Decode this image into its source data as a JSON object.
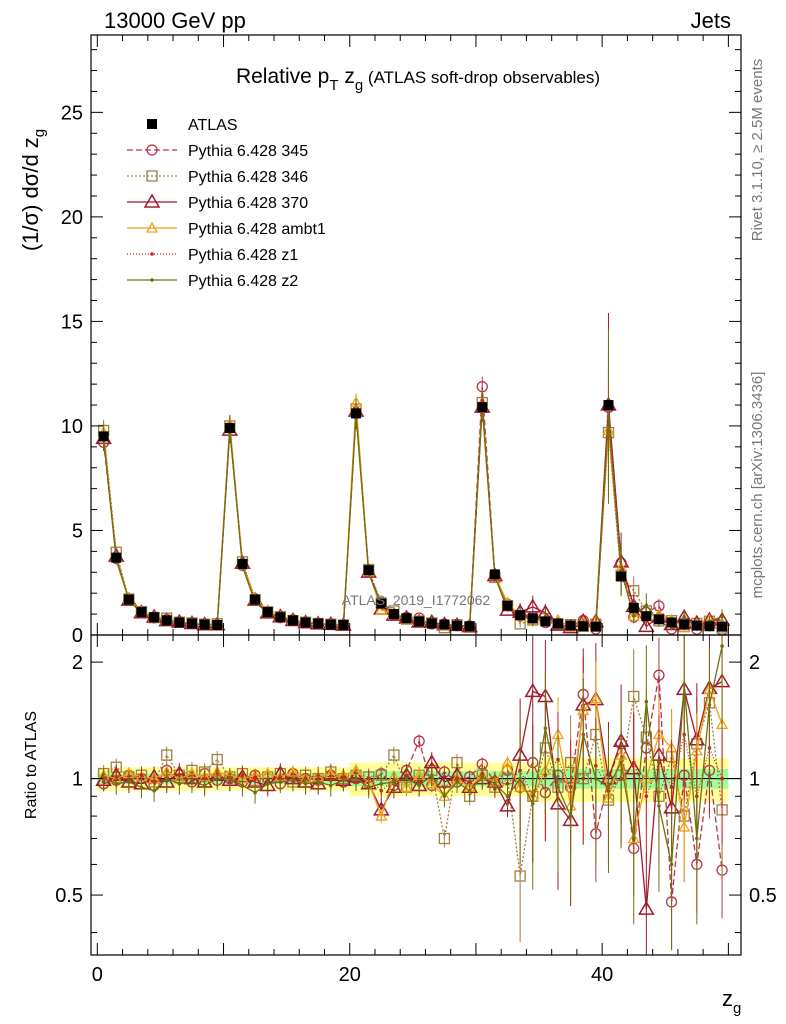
{
  "header": {
    "left": "13000 GeV pp",
    "right": "Jets"
  },
  "side_texts": {
    "rivet": "Rivet 3.1.10, ≥ 2.5M events",
    "mcplots": "mcplots.cern.ch [arXiv:1306.3436]"
  },
  "chart_data": {
    "type": "line",
    "title": "Relative pT zg (ATLAS soft-drop observables)",
    "title_parts": {
      "main": "Relative p",
      "sub_T": "T",
      "mid": " z",
      "sub_g": "g",
      "tail": " (ATLAS soft-drop observables)"
    },
    "ylabel": "(1/σ) dσ/d z_g",
    "ylabel_parts": {
      "main": "(1/σ) dσ/d z",
      "sub": "g"
    },
    "xlabel": "z_g",
    "xlabel_parts": {
      "main": "z",
      "sub": "g"
    },
    "ratio_ylabel": "Ratio to ATLAS",
    "watermark": "ATLAS_2019_I1772062",
    "xlim": [
      -0.5,
      51
    ],
    "ylim": [
      0,
      28.7
    ],
    "ratio_ylim": [
      0.35,
      2.35
    ],
    "x_ticks": [
      0,
      20,
      40
    ],
    "y_ticks": [
      0,
      5,
      10,
      15,
      20,
      25
    ],
    "ratio_ticks": [
      0.5,
      1,
      2
    ],
    "legend_position": "top-left",
    "x": [
      0.5,
      1.5,
      2.5,
      3.5,
      4.5,
      5.5,
      6.5,
      7.5,
      8.5,
      9.5,
      10.5,
      11.5,
      12.5,
      13.5,
      14.5,
      15.5,
      16.5,
      17.5,
      18.5,
      19.5,
      20.5,
      21.5,
      22.5,
      23.5,
      24.5,
      25.5,
      26.5,
      27.5,
      28.5,
      29.5,
      30.5,
      31.5,
      32.5,
      33.5,
      34.5,
      35.5,
      36.5,
      37.5,
      38.5,
      39.5,
      40.5,
      41.5,
      42.5,
      43.5,
      44.5,
      45.5,
      46.5,
      47.5,
      48.5,
      49.5
    ],
    "data": {
      "name": "ATLAS",
      "values": [
        9.5,
        3.7,
        1.7,
        1.1,
        0.85,
        0.7,
        0.6,
        0.55,
        0.5,
        0.48,
        9.9,
        3.4,
        1.7,
        1.1,
        0.85,
        0.7,
        0.6,
        0.55,
        0.5,
        0.48,
        10.6,
        3.1,
        1.5,
        1.0,
        0.8,
        0.65,
        0.55,
        0.5,
        0.45,
        0.42,
        10.9,
        2.9,
        1.4,
        0.95,
        0.8,
        0.65,
        0.55,
        0.45,
        0.42,
        0.4,
        11.0,
        2.8,
        1.3,
        0.9,
        0.75,
        0.6,
        0.5,
        0.45,
        0.42,
        0.4
      ]
    },
    "series": [
      {
        "name": "Pythia 6.428 345",
        "color": "#b5364a",
        "dash": "6,3",
        "marker": "circle",
        "ratios": [
          0.97,
          0.99,
          1.02,
          1.0,
          0.96,
          1.05,
          1.0,
          0.98,
          1.03,
          0.99,
          1.0,
          0.98,
          1.02,
          1.0,
          0.97,
          1.03,
          1.0,
          0.99,
          1.02,
          0.98,
          1.0,
          0.97,
          1.03,
          0.96,
          1.05,
          1.25,
          0.96,
          1.04,
          0.98,
          1.01,
          1.09,
          0.98,
          1.05,
          0.95,
          1.1,
          0.92,
          1.02,
          0.95,
          1.65,
          0.72,
          0.99,
          1.23,
          0.66,
          1.2,
          1.85,
          0.48,
          1.02,
          0.6,
          1.05,
          0.58
        ]
      },
      {
        "name": "Pythia 6.428 346",
        "color": "#a08040",
        "dash": "2,2",
        "marker": "square",
        "ratios": [
          1.03,
          1.07,
          1.01,
          1.02,
          0.98,
          1.15,
          1.02,
          1.05,
          1.04,
          1.12,
          1.01,
          1.03,
          0.99,
          1.01,
          1.03,
          0.98,
          1.02,
          1.0,
          1.04,
          1.0,
          1.02,
          1.01,
          1.02,
          1.15,
          0.95,
          1.02,
          1.05,
          0.7,
          1.1,
          0.9,
          1.02,
          0.95,
          1.0,
          0.56,
          0.9,
          1.2,
          0.95,
          1.1,
          1.0,
          1.3,
          0.88,
          1.02,
          1.63,
          1.28,
          0.9,
          1.14,
          0.8,
          1.23,
          1.57,
          0.83
        ]
      },
      {
        "name": "Pythia 6.428 370",
        "color": "#9e1a2e",
        "dash": "",
        "marker": "triangle",
        "ratios": [
          0.99,
          1.02,
          0.98,
          0.97,
          1.01,
          0.98,
          1.03,
          1.0,
          0.98,
          1.02,
          0.99,
          1.01,
          0.98,
          0.96,
          1.03,
          1.0,
          0.98,
          0.97,
          1.02,
          0.99,
          1.01,
          0.97,
          0.83,
          0.95,
          1.02,
          0.96,
          1.1,
          0.98,
          1.02,
          0.95,
          1.0,
          0.98,
          0.85,
          1.15,
          1.68,
          1.63,
          0.86,
          0.78,
          1.55,
          1.6,
          1.0,
          1.25,
          1.06,
          0.46,
          1.15,
          0.84,
          1.7,
          1.26,
          1.71,
          1.78
        ]
      },
      {
        "name": "Pythia 6.428 ambt1",
        "color": "#f0a010",
        "dash": "",
        "marker": "triangle-small",
        "ratios": [
          1.02,
          1.0,
          1.03,
          1.01,
          1.0,
          1.04,
          1.0,
          1.03,
          1.01,
          1.04,
          1.02,
          1.0,
          1.02,
          1.03,
          1.01,
          1.04,
          1.0,
          1.01,
          1.03,
          1.02,
          1.05,
          0.98,
          0.8,
          1.01,
          0.95,
          1.02,
          0.97,
          0.9,
          1.0,
          0.95,
          1.02,
          0.98,
          1.1,
          0.95,
          0.9,
          1.05,
          1.3,
          0.85,
          1.5,
          1.61,
          0.89,
          1.15,
          0.7,
          1.0,
          1.3,
          1.2,
          0.75,
          1.18,
          1.7,
          1.38
        ]
      },
      {
        "name": "Pythia 6.428 z1",
        "color": "#d02020",
        "dash": "1,2",
        "marker": "dot",
        "ratios": [
          0.98,
          1.01,
          0.99,
          1.02,
          0.98,
          1.0,
          1.02,
          0.99,
          1.0,
          1.03,
          0.98,
          1.02,
          1.0,
          0.99,
          1.01,
          0.98,
          1.0,
          1.02,
          0.99,
          1.01,
          0.98,
          1.0,
          0.93,
          0.99,
          1.02,
          0.97,
          1.01,
          0.95,
          1.0,
          0.98,
          1.03,
          0.94,
          0.97,
          1.05,
          0.9,
          1.02,
          1.12,
          0.95,
          1.0,
          1.08,
          0.93,
          1.0,
          1.1,
          0.9,
          1.1,
          0.95,
          1.3,
          0.9,
          1.2,
          1.0
        ]
      },
      {
        "name": "Pythia 6.428 z2",
        "color": "#707010",
        "dash": "",
        "marker": "dot",
        "ratios": [
          1.0,
          0.97,
          0.98,
          0.95,
          0.93,
          1.0,
          0.97,
          0.98,
          0.96,
          1.0,
          1.0,
          0.96,
          0.92,
          0.97,
          0.98,
          0.99,
          0.97,
          0.98,
          0.96,
          0.99,
          1.0,
          0.95,
          0.97,
          0.98,
          1.0,
          0.96,
          1.02,
          0.9,
          0.98,
          0.93,
          1.01,
          0.97,
          0.9,
          1.0,
          0.86,
          1.35,
          0.95,
          0.8,
          1.3,
          1.0,
          0.95,
          1.1,
          0.7,
          1.58,
          0.85,
          0.6,
          1.75,
          0.7,
          1.55,
          2.2
        ]
      }
    ]
  }
}
